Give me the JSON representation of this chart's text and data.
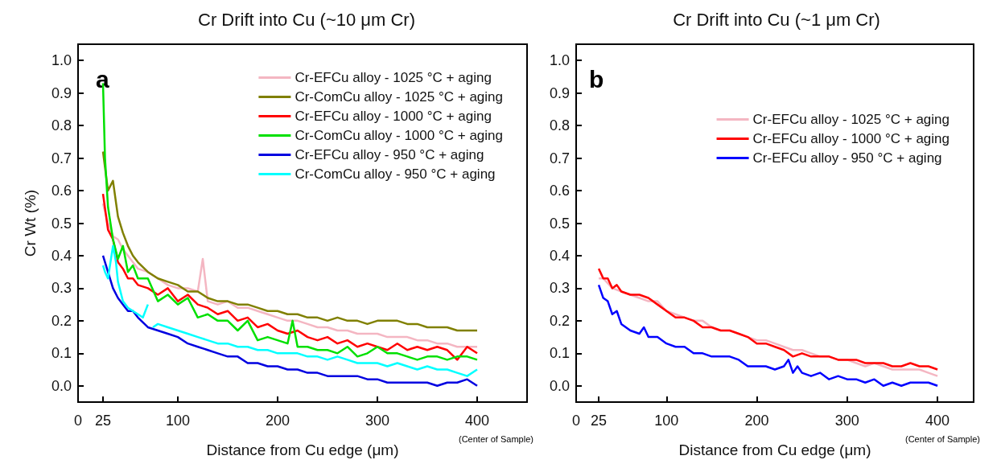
{
  "chart_data": [
    {
      "type": "line",
      "title": "Cr Drift into Cu (~10 μm Cr)",
      "xlabel": "Distance from Cu edge (μm)",
      "ylabel": "Cr Wt (%)",
      "annotations": [
        "a",
        "(Center of Sample)"
      ],
      "xlim": [
        0,
        450
      ],
      "xticks": [
        0,
        25,
        100,
        200,
        300,
        400
      ],
      "ylim": [
        -0.05,
        1.05
      ],
      "yticks": [
        {
          "value": 0,
          "label": "0.0"
        },
        {
          "value": 0.1,
          "label": "0.1"
        },
        {
          "value": 0.2,
          "label": "0.2"
        },
        {
          "value": 0.3,
          "label": "0.3"
        },
        {
          "value": 0.4,
          "label": "0.4"
        },
        {
          "value": 0.5,
          "label": "0.5"
        },
        {
          "value": 0.6,
          "label": "0.6"
        },
        {
          "value": 0.7,
          "label": "0.7"
        },
        {
          "value": 0.8,
          "label": "0.8"
        },
        {
          "value": 0.9,
          "label": "0.9"
        },
        {
          "value": 1,
          "label": "1.0"
        }
      ],
      "grid": false,
      "legend": "top right",
      "marker": "none",
      "line_style": "solid",
      "series": [
        {
          "name": "Cr-EFCu alloy - 1025 °C + aging",
          "color": "#f4b6c2",
          "x": [
            25,
            30,
            35,
            40,
            45,
            50,
            55,
            60,
            70,
            80,
            90,
            100,
            110,
            120,
            125,
            130,
            140,
            150,
            160,
            170,
            180,
            190,
            200,
            210,
            220,
            230,
            240,
            250,
            260,
            270,
            280,
            290,
            300,
            310,
            320,
            330,
            340,
            350,
            360,
            370,
            380,
            390,
            400
          ],
          "values": [
            0.56,
            0.5,
            0.46,
            0.45,
            0.42,
            0.4,
            0.38,
            0.36,
            0.35,
            0.33,
            0.31,
            0.3,
            0.3,
            0.29,
            0.39,
            0.26,
            0.25,
            0.26,
            0.24,
            0.24,
            0.23,
            0.22,
            0.21,
            0.2,
            0.2,
            0.19,
            0.18,
            0.18,
            0.17,
            0.17,
            0.16,
            0.16,
            0.16,
            0.15,
            0.15,
            0.15,
            0.14,
            0.14,
            0.13,
            0.13,
            0.12,
            0.12,
            0.12
          ]
        },
        {
          "name": "Cr-ComCu alloy - 1025 °C + aging",
          "color": "#808000",
          "x": [
            25,
            30,
            35,
            40,
            45,
            50,
            55,
            60,
            70,
            80,
            90,
            100,
            110,
            120,
            130,
            140,
            150,
            160,
            170,
            180,
            190,
            200,
            210,
            220,
            230,
            240,
            250,
            260,
            270,
            280,
            290,
            300,
            310,
            320,
            330,
            340,
            350,
            360,
            370,
            380,
            390,
            400
          ],
          "values": [
            0.72,
            0.6,
            0.63,
            0.52,
            0.47,
            0.43,
            0.4,
            0.38,
            0.35,
            0.33,
            0.32,
            0.31,
            0.29,
            0.29,
            0.27,
            0.26,
            0.26,
            0.25,
            0.25,
            0.24,
            0.23,
            0.23,
            0.22,
            0.22,
            0.21,
            0.21,
            0.2,
            0.21,
            0.2,
            0.2,
            0.19,
            0.2,
            0.2,
            0.2,
            0.19,
            0.19,
            0.18,
            0.18,
            0.18,
            0.17,
            0.17,
            0.17
          ]
        },
        {
          "name": "Cr-EFCu alloy - 1000 °C + aging",
          "color": "#ff0000",
          "x": [
            25,
            30,
            35,
            40,
            45,
            50,
            55,
            60,
            70,
            80,
            90,
            100,
            110,
            120,
            130,
            140,
            150,
            160,
            170,
            180,
            190,
            200,
            210,
            220,
            230,
            240,
            250,
            260,
            270,
            280,
            290,
            300,
            310,
            320,
            330,
            340,
            350,
            360,
            370,
            380,
            390,
            400
          ],
          "values": [
            0.59,
            0.48,
            0.45,
            0.38,
            0.36,
            0.33,
            0.33,
            0.31,
            0.3,
            0.28,
            0.3,
            0.26,
            0.28,
            0.25,
            0.24,
            0.22,
            0.23,
            0.2,
            0.21,
            0.18,
            0.19,
            0.17,
            0.16,
            0.17,
            0.15,
            0.14,
            0.15,
            0.13,
            0.14,
            0.12,
            0.13,
            0.12,
            0.11,
            0.13,
            0.11,
            0.12,
            0.11,
            0.12,
            0.11,
            0.08,
            0.12,
            0.1
          ]
        },
        {
          "name": "Cr-ComCu alloy - 1000 °C + aging",
          "color": "#00e000",
          "x": [
            25,
            27,
            30,
            35,
            40,
            45,
            50,
            55,
            60,
            70,
            80,
            90,
            100,
            110,
            120,
            130,
            140,
            150,
            160,
            170,
            180,
            190,
            200,
            210,
            215,
            220,
            230,
            240,
            250,
            260,
            270,
            280,
            290,
            300,
            310,
            320,
            330,
            340,
            350,
            360,
            370,
            380,
            390,
            400
          ],
          "values": [
            0.93,
            0.7,
            0.55,
            0.45,
            0.39,
            0.43,
            0.35,
            0.37,
            0.33,
            0.33,
            0.26,
            0.28,
            0.25,
            0.27,
            0.21,
            0.22,
            0.2,
            0.2,
            0.17,
            0.2,
            0.14,
            0.15,
            0.14,
            0.13,
            0.2,
            0.12,
            0.12,
            0.11,
            0.11,
            0.1,
            0.12,
            0.09,
            0.1,
            0.12,
            0.1,
            0.1,
            0.09,
            0.08,
            0.09,
            0.09,
            0.08,
            0.09,
            0.09,
            0.08
          ]
        },
        {
          "name": "Cr-EFCu alloy - 950 °C + aging",
          "color": "#0000e0",
          "x": [
            25,
            30,
            35,
            40,
            45,
            50,
            55,
            60,
            70,
            80,
            90,
            100,
            110,
            120,
            130,
            140,
            150,
            160,
            170,
            180,
            190,
            200,
            210,
            220,
            230,
            240,
            250,
            260,
            270,
            280,
            290,
            300,
            310,
            320,
            330,
            340,
            350,
            360,
            370,
            380,
            390,
            400
          ],
          "values": [
            0.4,
            0.35,
            0.3,
            0.27,
            0.25,
            0.23,
            0.23,
            0.21,
            0.18,
            0.17,
            0.16,
            0.15,
            0.13,
            0.12,
            0.11,
            0.1,
            0.09,
            0.09,
            0.07,
            0.07,
            0.06,
            0.06,
            0.05,
            0.05,
            0.04,
            0.04,
            0.03,
            0.03,
            0.03,
            0.03,
            0.02,
            0.02,
            0.01,
            0.01,
            0.01,
            0.01,
            0.01,
            0,
            0.01,
            0.01,
            0.02,
            0
          ]
        },
        {
          "name": "Cr-ComCu alloy - 950 °C + aging",
          "color": "#00ffff",
          "x": [
            25,
            27,
            30,
            35,
            38,
            40,
            45,
            50,
            55,
            60,
            65,
            70,
            72,
            75,
            80,
            90,
            100,
            110,
            120,
            130,
            140,
            150,
            160,
            170,
            180,
            190,
            200,
            210,
            220,
            230,
            240,
            250,
            260,
            270,
            280,
            290,
            300,
            310,
            320,
            330,
            340,
            350,
            360,
            370,
            380,
            390,
            400
          ],
          "values": [
            0.37,
            0.35,
            0.33,
            0.43,
            0.38,
            0.32,
            0.26,
            0.24,
            0.23,
            0.22,
            0.21,
            0.25,
            null,
            0.18,
            0.19,
            0.18,
            0.17,
            0.16,
            0.15,
            0.14,
            0.13,
            0.13,
            0.12,
            0.12,
            0.11,
            0.11,
            0.1,
            0.1,
            0.1,
            0.09,
            0.09,
            0.08,
            0.09,
            0.08,
            0.07,
            0.07,
            0.07,
            0.06,
            0.07,
            0.06,
            0.05,
            0.06,
            0.05,
            0.05,
            0.04,
            0.03,
            0.05
          ]
        }
      ]
    },
    {
      "type": "line",
      "title": "Cr Drift into Cu (~1 μm Cr)",
      "xlabel": "Distance from Cu edge (μm)",
      "annotations": [
        "b",
        "(Center of Sample)"
      ],
      "xlim": [
        0,
        440
      ],
      "xticks": [
        0,
        25,
        100,
        200,
        300,
        400
      ],
      "ylim": [
        -0.05,
        1.05
      ],
      "yticks": [
        {
          "value": 0,
          "label": "0.0"
        },
        {
          "value": 0.1,
          "label": "0.1"
        },
        {
          "value": 0.2,
          "label": "0.2"
        },
        {
          "value": 0.3,
          "label": "0.3"
        },
        {
          "value": 0.4,
          "label": "0.4"
        },
        {
          "value": 0.5,
          "label": "0.5"
        },
        {
          "value": 0.6,
          "label": "0.6"
        },
        {
          "value": 0.7,
          "label": "0.7"
        },
        {
          "value": 0.8,
          "label": "0.8"
        },
        {
          "value": 0.9,
          "label": "0.9"
        },
        {
          "value": 1,
          "label": "1.0"
        }
      ],
      "grid": false,
      "legend": "top right",
      "marker": "none",
      "line_style": "solid",
      "series": [
        {
          "name": "Cr-EFCu alloy - 1025 °C + aging",
          "color": "#f4b6c2",
          "x": [
            25,
            30,
            40,
            50,
            60,
            70,
            80,
            90,
            100,
            110,
            120,
            130,
            140,
            150,
            160,
            170,
            180,
            190,
            200,
            210,
            220,
            230,
            240,
            250,
            260,
            270,
            280,
            290,
            300,
            310,
            320,
            330,
            340,
            350,
            360,
            370,
            380,
            390,
            400
          ],
          "values": [
            0.33,
            0.33,
            0.3,
            0.29,
            0.28,
            0.27,
            0.26,
            0.26,
            0.23,
            0.22,
            0.21,
            0.2,
            0.2,
            0.18,
            0.17,
            0.17,
            0.16,
            0.15,
            0.14,
            0.14,
            0.13,
            0.12,
            0.11,
            0.11,
            0.1,
            0.09,
            0.09,
            0.08,
            0.08,
            0.07,
            0.06,
            0.07,
            0.06,
            0.05,
            0.05,
            0.05,
            0.05,
            0.04,
            0.03
          ]
        },
        {
          "name": "Cr-EFCu alloy - 1000 °C + aging",
          "color": "#ff0000",
          "x": [
            25,
            30,
            35,
            40,
            45,
            50,
            60,
            70,
            80,
            90,
            100,
            110,
            120,
            130,
            140,
            150,
            160,
            170,
            180,
            190,
            200,
            210,
            220,
            230,
            240,
            250,
            260,
            270,
            280,
            290,
            300,
            310,
            320,
            330,
            340,
            350,
            360,
            370,
            380,
            390,
            400
          ],
          "values": [
            0.36,
            0.33,
            0.33,
            0.3,
            0.31,
            0.29,
            0.28,
            0.28,
            0.27,
            0.25,
            0.23,
            0.21,
            0.21,
            0.2,
            0.18,
            0.18,
            0.17,
            0.17,
            0.16,
            0.15,
            0.13,
            0.13,
            0.12,
            0.11,
            0.09,
            0.1,
            0.09,
            0.09,
            0.09,
            0.08,
            0.08,
            0.08,
            0.07,
            0.07,
            0.07,
            0.06,
            0.06,
            0.07,
            0.06,
            0.06,
            0.05
          ]
        },
        {
          "name": "Cr-EFCu alloy - 950 °C + aging",
          "color": "#0000ff",
          "x": [
            25,
            30,
            35,
            40,
            45,
            50,
            60,
            70,
            75,
            80,
            90,
            100,
            110,
            120,
            130,
            140,
            150,
            160,
            170,
            180,
            190,
            200,
            210,
            220,
            230,
            235,
            240,
            245,
            250,
            260,
            270,
            280,
            290,
            300,
            310,
            320,
            330,
            340,
            350,
            360,
            370,
            380,
            390,
            400
          ],
          "values": [
            0.31,
            0.27,
            0.26,
            0.22,
            0.23,
            0.19,
            0.17,
            0.16,
            0.18,
            0.15,
            0.15,
            0.13,
            0.12,
            0.12,
            0.1,
            0.1,
            0.09,
            0.09,
            0.09,
            0.08,
            0.06,
            0.06,
            0.06,
            0.05,
            0.06,
            0.08,
            0.04,
            0.06,
            0.04,
            0.03,
            0.04,
            0.02,
            0.03,
            0.02,
            0.02,
            0.01,
            0.02,
            0,
            0.01,
            0,
            0.01,
            0.01,
            0.01,
            0
          ]
        }
      ]
    }
  ]
}
